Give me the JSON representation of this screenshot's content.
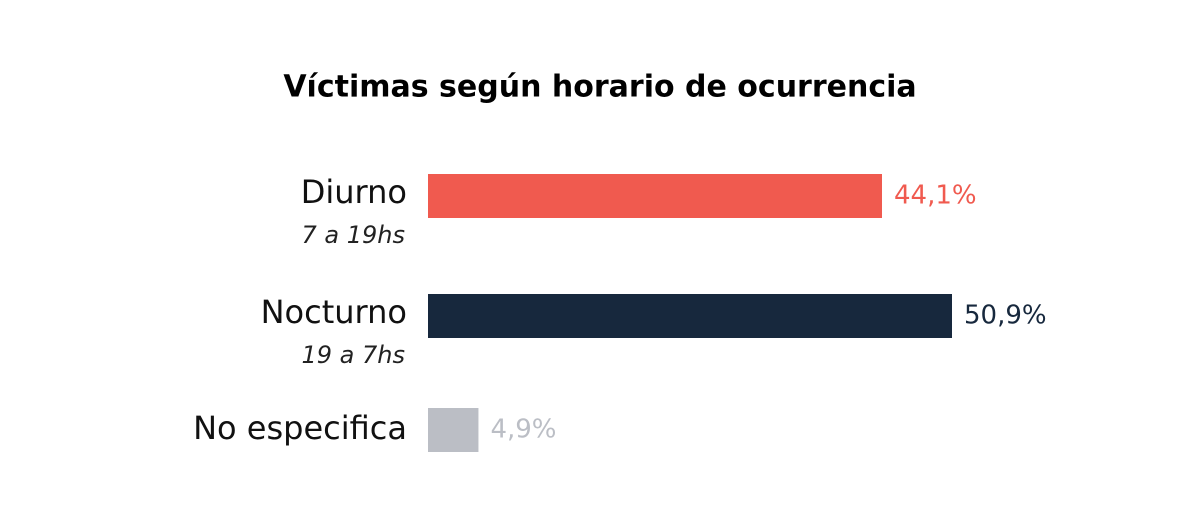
{
  "chart_data": {
    "type": "bar",
    "orientation": "horizontal",
    "title": "Víctimas según horario de ocurrencia",
    "categories": [
      "Diurno",
      "Nocturno",
      "No especifica"
    ],
    "sublabels": [
      "7 a 19hs",
      "19 a 7hs",
      null
    ],
    "values": [
      44.1,
      50.9,
      4.9
    ],
    "value_labels": [
      "44,1%",
      "50,9%",
      "4,9%"
    ],
    "colors": [
      "#f05a4f",
      "#17283d",
      "#bbbec5"
    ]
  }
}
